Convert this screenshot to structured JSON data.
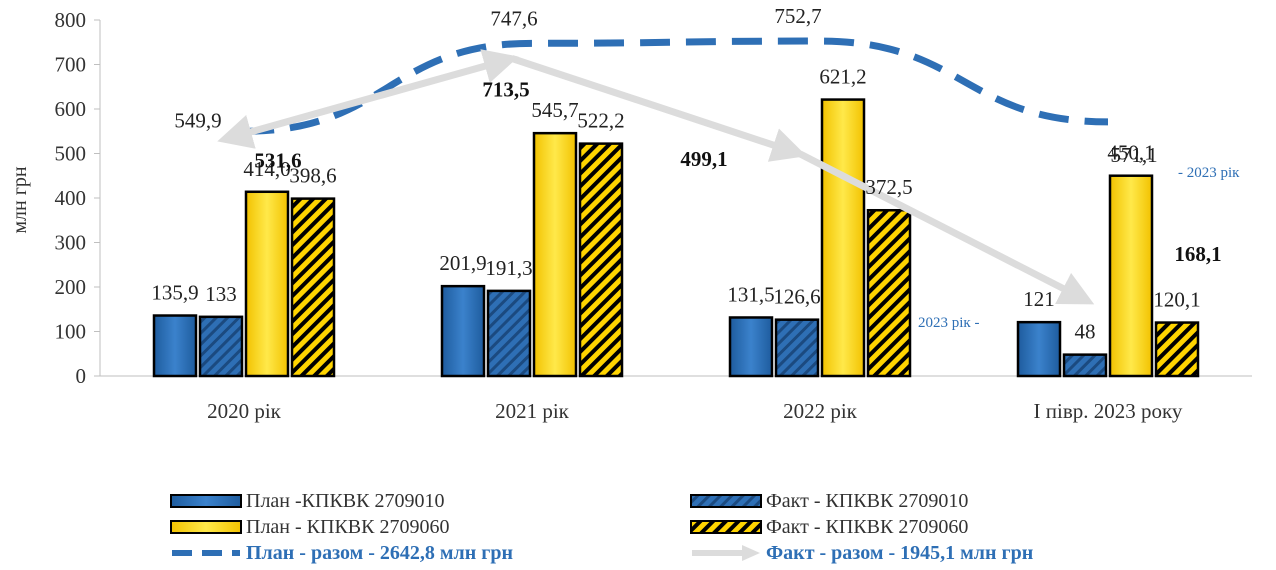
{
  "chart_data": {
    "type": "bar",
    "ylabel": "млн грн",
    "ylim": [
      0,
      800
    ],
    "yticks": [
      "0",
      "100",
      "200",
      "300",
      "400",
      "500",
      "600",
      "700",
      "800"
    ],
    "ytick_values": [
      0,
      100,
      200,
      300,
      400,
      500,
      600,
      700,
      800
    ],
    "categories": [
      "2020 рік",
      "2021 рік",
      "2022 рік",
      "І півр. 2023 року"
    ],
    "series": [
      {
        "name": "План -КПКВК 2709010",
        "values": [
          135.9,
          201.9,
          131.5,
          121
        ],
        "labels": [
          "135,9",
          "201,9",
          "131,5",
          "121"
        ],
        "color": "#2e6fb5",
        "pattern": "solid"
      },
      {
        "name": "Факт - КПКВК 2709010",
        "values": [
          133,
          191.3,
          126.6,
          48
        ],
        "labels": [
          "133",
          "191,3",
          "126,6",
          "48"
        ],
        "color": "#2e6fb5",
        "pattern": "hatched"
      },
      {
        "name": "План - КПКВК 2709060",
        "values": [
          414.0,
          545.7,
          621.2,
          450.1
        ],
        "labels": [
          "414,0",
          "545,7",
          "621,2",
          "450,1"
        ],
        "color": "#ffd400",
        "pattern": "solid"
      },
      {
        "name": "Факт - КПКВК 2709060",
        "values": [
          398.6,
          522.2,
          372.5,
          120.1
        ],
        "labels": [
          "398,6",
          "522,2",
          "372,5",
          "120,1"
        ],
        "color": "#ffd400",
        "pattern": "hatched"
      }
    ],
    "lines": [
      {
        "name": "План - разом - 2642,8 млн грн",
        "values": [
          549.9,
          747.6,
          752.7,
          571.1
        ],
        "labels": [
          "549,9",
          "747,6",
          "752,7",
          "571,1"
        ],
        "color": "#2e6fb5",
        "style": "dashed"
      },
      {
        "name": "Факт - разом - 1945,1 млн грн",
        "values": [
          531.6,
          713.5,
          499.1,
          168.1
        ],
        "labels": [
          "531,6",
          "713,5",
          "499,1",
          "168,1"
        ],
        "color": "#dcdcdc",
        "style": "arrow"
      }
    ],
    "annotations": [
      "- 2023 рік",
      "2023 рік  -"
    ],
    "legend_position": "bottom",
    "grid": false
  }
}
